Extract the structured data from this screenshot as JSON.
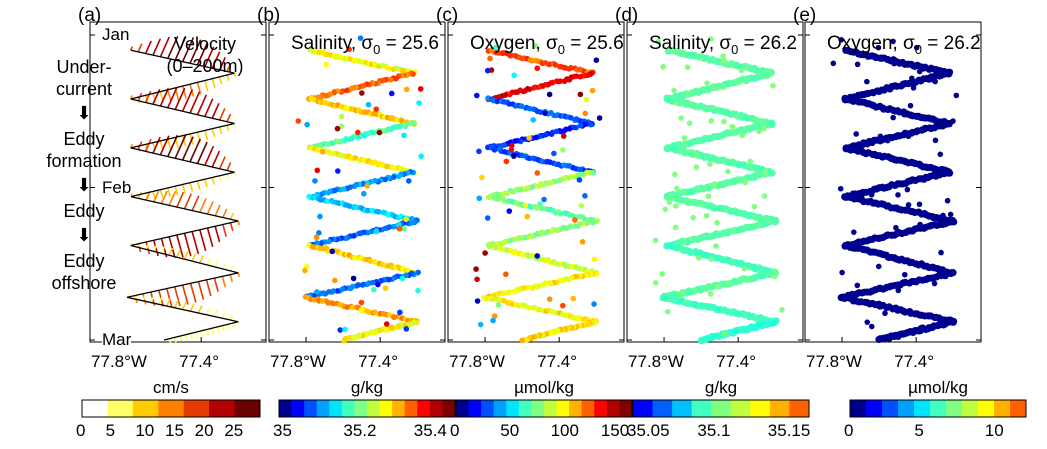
{
  "panels": [
    {
      "id": "a",
      "label": "(a)",
      "title": "Velocity",
      "subtitle": "(0–200m)",
      "var": "vel"
    },
    {
      "id": "b",
      "label": "(b)",
      "title": "Salinity, σ",
      "sub": "0",
      "title_tail": " = 25.6",
      "var": "sal256"
    },
    {
      "id": "c",
      "label": "(c)",
      "title": "Oxygen, σ",
      "sub": "0",
      "title_tail": " = 25.6",
      "var": "oxy256"
    },
    {
      "id": "d",
      "label": "(d)",
      "title": "Salinity, σ",
      "sub": "0",
      "title_tail": " = 26.2",
      "var": "sal262"
    },
    {
      "id": "e",
      "label": "(e)",
      "title": "Oxygen, σ",
      "sub": "0",
      "title_tail": " = 26.2",
      "var": "oxy262"
    }
  ],
  "months": [
    "Jan",
    "Feb",
    "Mar"
  ],
  "xticks": [
    "77.8°W",
    "77.4°"
  ],
  "stages": {
    "s1": "Under-\ncurrent",
    "s2": "Eddy\nformation",
    "s3": "Eddy",
    "s4": "Eddy\noffshore",
    "arrow": "⬇"
  },
  "colorbars": [
    {
      "id": "cb-a",
      "title": "cm/s",
      "ticks": [
        "0",
        "5",
        "10",
        "15",
        "20",
        "25"
      ],
      "colors": [
        "#ffffff",
        "#ffff66",
        "#ffcc00",
        "#ff8000",
        "#e63b00",
        "#b30000",
        "#6b0000"
      ]
    },
    {
      "id": "cb-b",
      "title": "g/kg",
      "ticks": [
        "35",
        "35.2",
        "35.4"
      ],
      "colors": [
        "#00008f",
        "#0000ff",
        "#0050ff",
        "#00a0ff",
        "#00e5ff",
        "#40ffbf",
        "#80ff80",
        "#bfff40",
        "#ffff00",
        "#ffb000",
        "#ff6000",
        "#ff0000",
        "#b00000",
        "#800000"
      ]
    },
    {
      "id": "cb-c",
      "title": "µmol/kg",
      "ticks": [
        "0",
        "50",
        "100",
        "150"
      ],
      "colors": [
        "#00008f",
        "#0000ff",
        "#0050ff",
        "#00a0ff",
        "#00e5ff",
        "#40ffbf",
        "#80ff80",
        "#bfff40",
        "#ffff00",
        "#ffb000",
        "#ff6000",
        "#ff0000",
        "#b00000",
        "#800000"
      ]
    },
    {
      "id": "cb-d",
      "title": "g/kg",
      "ticks": [
        "35.05",
        "35.1",
        "35.15"
      ],
      "colors": [
        "#0000ff",
        "#0060ff",
        "#00c0ff",
        "#40ffbf",
        "#80ff80",
        "#c0ff40",
        "#ffff00",
        "#ffb000",
        "#ff6000"
      ]
    },
    {
      "id": "cb-e",
      "title": "µmol/kg",
      "ticks": [
        "0",
        "5",
        "10"
      ],
      "colors": [
        "#00008f",
        "#0000ff",
        "#0050ff",
        "#00a0ff",
        "#00e5ff",
        "#40ffbf",
        "#80ff80",
        "#bfff40",
        "#ffff00",
        "#ffb000",
        "#ff6000"
      ]
    }
  ],
  "chart_data": {
    "type": "scatter",
    "x_axis": {
      "label": "",
      "ticks": [
        -77.8,
        -77.4
      ],
      "tick_labels": [
        "77.8°W",
        "77.4°"
      ],
      "range": [
        -78.0,
        -77.05
      ]
    },
    "y_axis": {
      "label": "",
      "tick_labels": [
        "Jan",
        "Feb",
        "Mar"
      ],
      "direction": "time increasing downward"
    },
    "track_turning_points": [
      {
        "month": 1.1,
        "lon": -77.78
      },
      {
        "month": 1.25,
        "lon": -77.22
      },
      {
        "month": 1.42,
        "lon": -77.78
      },
      {
        "month": 1.58,
        "lon": -77.22
      },
      {
        "month": 1.74,
        "lon": -77.78
      },
      {
        "month": 1.9,
        "lon": -77.22
      },
      {
        "month": 2.06,
        "lon": -77.78
      },
      {
        "month": 2.22,
        "lon": -77.2
      },
      {
        "month": 2.38,
        "lon": -77.78
      },
      {
        "month": 2.56,
        "lon": -77.2
      },
      {
        "month": 2.72,
        "lon": -77.8
      },
      {
        "month": 2.88,
        "lon": -77.2
      },
      {
        "month": 3.0,
        "lon": -77.6
      }
    ],
    "series": [
      {
        "name": "Velocity (0–200m)",
        "units": "cm/s",
        "range": [
          0,
          30
        ]
      },
      {
        "name": "Salinity, σ0 = 25.6",
        "units": "g/kg",
        "range": [
          35.0,
          35.45
        ]
      },
      {
        "name": "Oxygen, σ0 = 25.6",
        "units": "µmol/kg",
        "range": [
          0,
          190
        ]
      },
      {
        "name": "Salinity, σ0 = 26.2",
        "units": "g/kg",
        "range": [
          35.05,
          35.18
        ]
      },
      {
        "name": "Oxygen, σ0 = 26.2",
        "units": "µmol/kg",
        "range": [
          0,
          10
        ]
      }
    ],
    "segment_values": {
      "sal256": [
        35.28,
        35.35,
        35.3,
        35.2,
        35.28,
        35.12,
        35.15,
        35.1,
        35.3,
        35.1,
        35.32,
        35.28
      ],
      "oxy256": [
        150,
        170,
        40,
        30,
        40,
        100,
        90,
        100,
        110,
        120,
        120,
        125
      ],
      "sal262": [
        35.12,
        35.12,
        35.12,
        35.12,
        35.12,
        35.12,
        35.12,
        35.12,
        35.11,
        35.12,
        35.11,
        35.1
      ],
      "oxy262": [
        0.3,
        0.3,
        0.3,
        0.3,
        0.3,
        0.3,
        0.3,
        0.3,
        0.3,
        0.3,
        0.3,
        0.3
      ],
      "vel": [
        25,
        10,
        22,
        8,
        24,
        6,
        14,
        22,
        5,
        18,
        5,
        3
      ]
    }
  }
}
